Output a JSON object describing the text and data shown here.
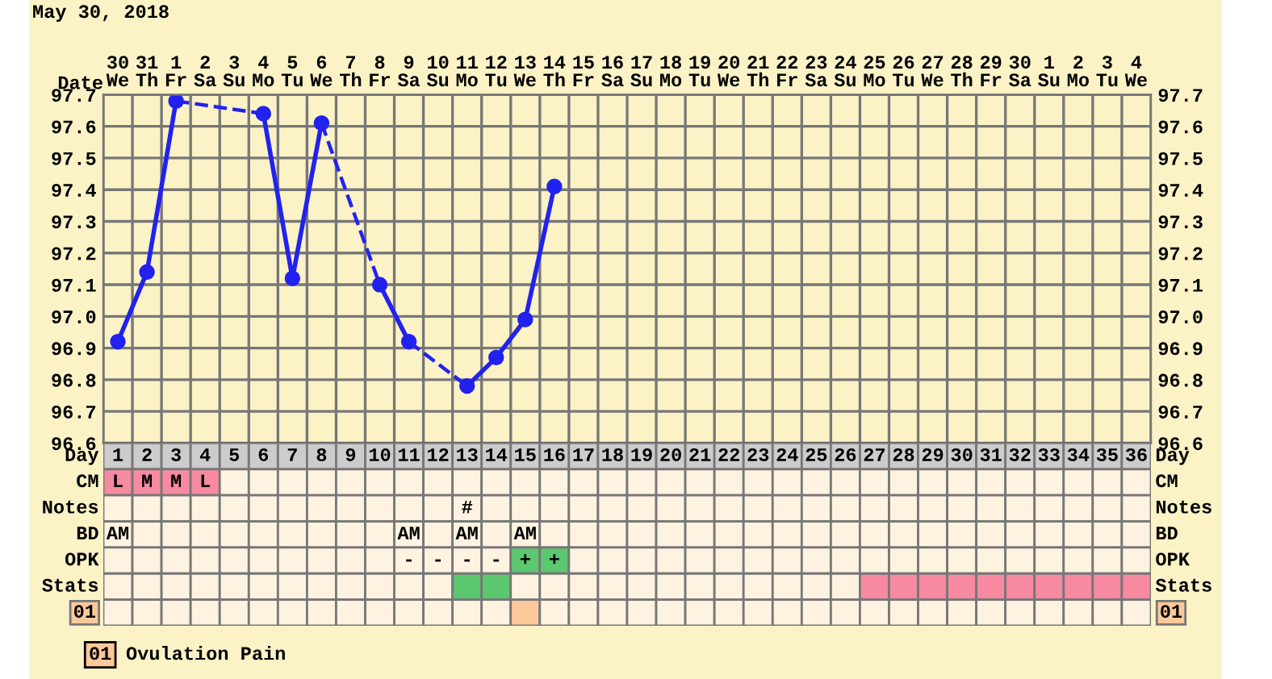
{
  "chart_data": [
    {
      "type": "line",
      "title": "May 30, 2018",
      "xlabel": "Date",
      "categories": [
        "30\nWe",
        "31\nTh",
        "1\nFr",
        "2\nSa",
        "3\nSu",
        "4\nMo",
        "5\nTu",
        "6\nWe",
        "7\nTh",
        "8\nFr",
        "9\nSa",
        "10\nSu",
        "11\nMo",
        "12\nTu",
        "13\nWe",
        "14\nTh",
        "15\nFr",
        "16\nSa",
        "17\nSu",
        "18\nMo",
        "19\nTu",
        "20\nWe",
        "21\nTh",
        "22\nFr",
        "23\nSa",
        "24\nSu",
        "25\nMo",
        "26\nTu",
        "27\nWe",
        "28\nTh",
        "29\nFr",
        "30\nSa",
        "1\nSu",
        "2\nMo",
        "3\nTu",
        "4\nWe"
      ],
      "series": [
        {
          "color": "#2222ee",
          "marker": "circle",
          "line_style": "solid",
          "values": [
            96.92,
            97.14,
            97.68,
            null,
            null,
            97.64,
            97.12,
            97.61,
            null,
            97.1,
            96.92,
            null,
            96.78,
            96.87,
            96.99,
            97.41,
            null,
            null,
            null,
            null,
            null,
            null,
            null,
            null,
            null,
            null,
            null,
            null,
            null,
            null,
            null,
            null,
            null,
            null,
            null,
            null
          ]
        }
      ],
      "ylim": [
        96.6,
        97.7
      ],
      "yticks": [
        {
          "value": 96.6,
          "label": "96.6"
        },
        {
          "value": 96.7,
          "label": "96.7"
        },
        {
          "value": 96.8,
          "label": "96.8"
        },
        {
          "value": 96.9,
          "label": "96.9"
        },
        {
          "value": 97.0,
          "label": "97.0"
        },
        {
          "value": 97.1,
          "label": "97.1"
        },
        {
          "value": 97.2,
          "label": "97.2"
        },
        {
          "value": 97.3,
          "label": "97.3"
        },
        {
          "value": 97.4,
          "label": "97.4"
        },
        {
          "value": 97.5,
          "label": "97.5"
        },
        {
          "value": 97.6,
          "label": "97.6"
        },
        {
          "value": 97.7,
          "label": "97.7"
        }
      ],
      "y2lim": [
        96.6,
        97.7
      ],
      "y2ticks": [
        {
          "value": 96.6,
          "label": "96.6"
        },
        {
          "value": 96.7,
          "label": "96.7"
        },
        {
          "value": 96.8,
          "label": "96.8"
        },
        {
          "value": 96.9,
          "label": "96.9"
        },
        {
          "value": 97.0,
          "label": "97.0"
        },
        {
          "value": 97.1,
          "label": "97.1"
        },
        {
          "value": 97.2,
          "label": "97.2"
        },
        {
          "value": 97.3,
          "label": "97.3"
        },
        {
          "value": 97.4,
          "label": "97.4"
        },
        {
          "value": 97.5,
          "label": "97.5"
        },
        {
          "value": 97.6,
          "label": "97.6"
        },
        {
          "value": 97.7,
          "label": "97.7"
        }
      ],
      "grid": true
    },
    {
      "type": "heatmap",
      "xlabel": "Day",
      "categories": [
        "1",
        "2",
        "3",
        "4",
        "5",
        "6",
        "7",
        "8",
        "9",
        "10",
        "11",
        "12",
        "13",
        "14",
        "15",
        "16",
        "17",
        "18",
        "19",
        "20",
        "21",
        "22",
        "23",
        "24",
        "25",
        "26",
        "27",
        "28",
        "29",
        "30",
        "31",
        "32",
        "33",
        "34",
        "35",
        "36"
      ],
      "y_categories": [
        "CM",
        "Notes",
        "BD",
        "OPK",
        "Stats",
        "01"
      ],
      "y2_categories": [
        "CM",
        "Notes",
        "BD",
        "OPK",
        "Stats",
        "01"
      ],
      "cells": [
        [
          null,
          null,
          null,
          null,
          null,
          null,
          null,
          null,
          null,
          null,
          null,
          null,
          null,
          null,
          null,
          null,
          null,
          null,
          null,
          null,
          null,
          null,
          null,
          null,
          null,
          null,
          null,
          null,
          null,
          null,
          null,
          null,
          null,
          null,
          null,
          null
        ],
        [
          null,
          null,
          null,
          null,
          null,
          null,
          null,
          null,
          null,
          null,
          null,
          null,
          null,
          null,
          null,
          null,
          null,
          null,
          null,
          null,
          null,
          null,
          null,
          null,
          null,
          null,
          null,
          null,
          null,
          null,
          null,
          null,
          null,
          null,
          null,
          null
        ],
        [
          null,
          null,
          null,
          null,
          null,
          null,
          null,
          null,
          null,
          null,
          null,
          null,
          null,
          null,
          null,
          null,
          null,
          null,
          null,
          null,
          null,
          null,
          null,
          null,
          null,
          null,
          null,
          null,
          null,
          null,
          null,
          null,
          null,
          null,
          null,
          null
        ],
        [
          null,
          null,
          null,
          null,
          null,
          null,
          null,
          null,
          null,
          null,
          null,
          null,
          null,
          null,
          null,
          null,
          null,
          null,
          null,
          null,
          null,
          null,
          null,
          null,
          null,
          null,
          null,
          null,
          null,
          null,
          null,
          null,
          null,
          null,
          null,
          null
        ],
        [
          null,
          null,
          null,
          null,
          null,
          null,
          null,
          null,
          null,
          null,
          null,
          null,
          null,
          null,
          null,
          null,
          null,
          null,
          null,
          null,
          null,
          null,
          null,
          null,
          null,
          null,
          null,
          null,
          null,
          null,
          null,
          null,
          null,
          null,
          null,
          null
        ],
        [
          null,
          null,
          null,
          null,
          null,
          null,
          null,
          null,
          null,
          null,
          null,
          null,
          null,
          null,
          null,
          null,
          null,
          null,
          null,
          null,
          null,
          null,
          null,
          null,
          null,
          null,
          null,
          null,
          null,
          null,
          null,
          null,
          null,
          null,
          null,
          null
        ]
      ],
      "cell_labels": [
        [
          "L",
          "M",
          "M",
          "L",
          null,
          null,
          null,
          null,
          null,
          null,
          null,
          null,
          null,
          null,
          null,
          null,
          null,
          null,
          null,
          null,
          null,
          null,
          null,
          null,
          null,
          null,
          null,
          null,
          null,
          null,
          null,
          null,
          null,
          null,
          null,
          null
        ],
        [
          null,
          null,
          null,
          null,
          null,
          null,
          null,
          null,
          null,
          null,
          null,
          null,
          "#",
          null,
          null,
          null,
          null,
          null,
          null,
          null,
          null,
          null,
          null,
          null,
          null,
          null,
          null,
          null,
          null,
          null,
          null,
          null,
          null,
          null,
          null,
          null
        ],
        [
          "AM",
          null,
          null,
          null,
          null,
          null,
          null,
          null,
          null,
          null,
          "AM",
          null,
          "AM",
          null,
          "AM",
          null,
          null,
          null,
          null,
          null,
          null,
          null,
          null,
          null,
          null,
          null,
          null,
          null,
          null,
          null,
          null,
          null,
          null,
          null,
          null,
          null
        ],
        [
          null,
          null,
          null,
          null,
          null,
          null,
          null,
          null,
          null,
          null,
          "-",
          "-",
          "-",
          "-",
          "+",
          "+",
          null,
          null,
          null,
          null,
          null,
          null,
          null,
          null,
          null,
          null,
          null,
          null,
          null,
          null,
          null,
          null,
          null,
          null,
          null,
          null
        ],
        [
          null,
          null,
          null,
          null,
          null,
          null,
          null,
          null,
          null,
          null,
          null,
          null,
          null,
          null,
          null,
          null,
          null,
          null,
          null,
          null,
          null,
          null,
          null,
          null,
          null,
          null,
          null,
          null,
          null,
          null,
          null,
          null,
          null,
          null,
          null,
          null
        ],
        [
          null,
          null,
          null,
          null,
          null,
          null,
          null,
          null,
          null,
          null,
          null,
          null,
          null,
          null,
          null,
          null,
          null,
          null,
          null,
          null,
          null,
          null,
          null,
          null,
          null,
          null,
          null,
          null,
          null,
          null,
          null,
          null,
          null,
          null,
          null,
          null
        ]
      ],
      "colors": [
        [
          "#f78aa0",
          "#f78aa0",
          "#f78aa0",
          "#f78aa0",
          "#fdf3e0",
          "#fdf3e0",
          "#fdf3e0",
          "#fdf3e0",
          "#fdf3e0",
          "#fdf3e0",
          "#fdf3e0",
          "#fdf3e0",
          "#fdf3e0",
          "#fdf3e0",
          "#fdf3e0",
          "#fdf3e0",
          "#fdf3e0",
          "#fdf3e0",
          "#fdf3e0",
          "#fdf3e0",
          "#fdf3e0",
          "#fdf3e0",
          "#fdf3e0",
          "#fdf3e0",
          "#fdf3e0",
          "#fdf3e0",
          "#fdf3e0",
          "#fdf3e0",
          "#fdf3e0",
          "#fdf3e0",
          "#fdf3e0",
          "#fdf3e0",
          "#fdf3e0",
          "#fdf3e0",
          "#fdf3e0",
          "#fdf3e0"
        ],
        [
          "#fdf3e0",
          "#fdf3e0",
          "#fdf3e0",
          "#fdf3e0",
          "#fdf3e0",
          "#fdf3e0",
          "#fdf3e0",
          "#fdf3e0",
          "#fdf3e0",
          "#fdf3e0",
          "#fdf3e0",
          "#fdf3e0",
          "#fdf3e0",
          "#fdf3e0",
          "#fdf3e0",
          "#fdf3e0",
          "#fdf3e0",
          "#fdf3e0",
          "#fdf3e0",
          "#fdf3e0",
          "#fdf3e0",
          "#fdf3e0",
          "#fdf3e0",
          "#fdf3e0",
          "#fdf3e0",
          "#fdf3e0",
          "#fdf3e0",
          "#fdf3e0",
          "#fdf3e0",
          "#fdf3e0",
          "#fdf3e0",
          "#fdf3e0",
          "#fdf3e0",
          "#fdf3e0",
          "#fdf3e0",
          "#fdf3e0"
        ],
        [
          "#fdf3e0",
          "#fdf3e0",
          "#fdf3e0",
          "#fdf3e0",
          "#fdf3e0",
          "#fdf3e0",
          "#fdf3e0",
          "#fdf3e0",
          "#fdf3e0",
          "#fdf3e0",
          "#fdf3e0",
          "#fdf3e0",
          "#fdf3e0",
          "#fdf3e0",
          "#fdf3e0",
          "#fdf3e0",
          "#fdf3e0",
          "#fdf3e0",
          "#fdf3e0",
          "#fdf3e0",
          "#fdf3e0",
          "#fdf3e0",
          "#fdf3e0",
          "#fdf3e0",
          "#fdf3e0",
          "#fdf3e0",
          "#fdf3e0",
          "#fdf3e0",
          "#fdf3e0",
          "#fdf3e0",
          "#fdf3e0",
          "#fdf3e0",
          "#fdf3e0",
          "#fdf3e0",
          "#fdf3e0",
          "#fdf3e0"
        ],
        [
          "#fdf3e0",
          "#fdf3e0",
          "#fdf3e0",
          "#fdf3e0",
          "#fdf3e0",
          "#fdf3e0",
          "#fdf3e0",
          "#fdf3e0",
          "#fdf3e0",
          "#fdf3e0",
          "#fdf3e0",
          "#fdf3e0",
          "#fdf3e0",
          "#fdf3e0",
          "#5bc870",
          "#5bc870",
          "#fdf3e0",
          "#fdf3e0",
          "#fdf3e0",
          "#fdf3e0",
          "#fdf3e0",
          "#fdf3e0",
          "#fdf3e0",
          "#fdf3e0",
          "#fdf3e0",
          "#fdf3e0",
          "#fdf3e0",
          "#fdf3e0",
          "#fdf3e0",
          "#fdf3e0",
          "#fdf3e0",
          "#fdf3e0",
          "#fdf3e0",
          "#fdf3e0",
          "#fdf3e0",
          "#fdf3e0"
        ],
        [
          "#fdf3e0",
          "#fdf3e0",
          "#fdf3e0",
          "#fdf3e0",
          "#fdf3e0",
          "#fdf3e0",
          "#fdf3e0",
          "#fdf3e0",
          "#fdf3e0",
          "#fdf3e0",
          "#fdf3e0",
          "#fdf3e0",
          "#5bc870",
          "#5bc870",
          "#fdf3e0",
          "#fdf3e0",
          "#fdf3e0",
          "#fdf3e0",
          "#fdf3e0",
          "#fdf3e0",
          "#fdf3e0",
          "#fdf3e0",
          "#fdf3e0",
          "#fdf3e0",
          "#fdf3e0",
          "#fdf3e0",
          "#f78aa0",
          "#f78aa0",
          "#f78aa0",
          "#f78aa0",
          "#f78aa0",
          "#f78aa0",
          "#f78aa0",
          "#f78aa0",
          "#f78aa0",
          "#f78aa0"
        ],
        [
          "#fdf3e0",
          "#fdf3e0",
          "#fdf3e0",
          "#fdf3e0",
          "#fdf3e0",
          "#fdf3e0",
          "#fdf3e0",
          "#fdf3e0",
          "#fdf3e0",
          "#fdf3e0",
          "#fdf3e0",
          "#fdf3e0",
          "#fdf3e0",
          "#fdf3e0",
          "#fdc99a",
          "#fdf3e0",
          "#fdf3e0",
          "#fdf3e0",
          "#fdf3e0",
          "#fdf3e0",
          "#fdf3e0",
          "#fdf3e0",
          "#fdf3e0",
          "#fdf3e0",
          "#fdf3e0",
          "#fdf3e0",
          "#fdf3e0",
          "#fdf3e0",
          "#fdf3e0",
          "#fdf3e0",
          "#fdf3e0",
          "#fdf3e0",
          "#fdf3e0",
          "#fdf3e0",
          "#fdf3e0",
          "#fdf3e0"
        ]
      ],
      "annotations": [
        "01",
        "Ovulation Pain"
      ]
    }
  ]
}
